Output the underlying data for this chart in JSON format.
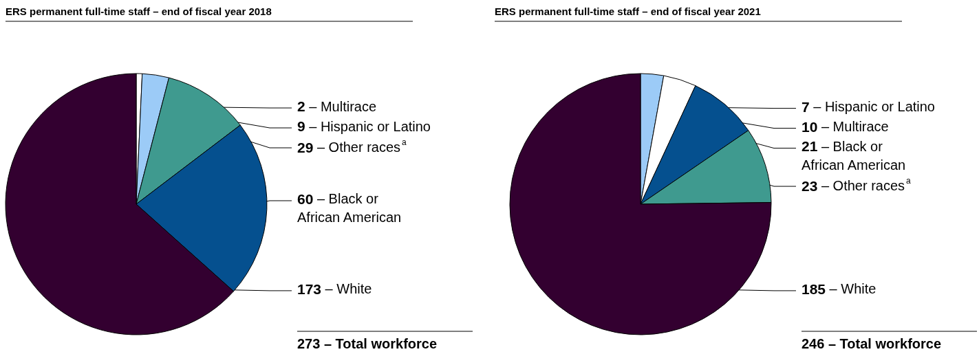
{
  "chart_data": [
    {
      "type": "pie",
      "title": "ERS permanent full-time staff – end of fiscal year 2018",
      "categories": [
        "Multirace",
        "Hispanic or Latino",
        "Other races$^{a}$",
        "Black or\nAfrican American",
        "White"
      ],
      "values": [
        2,
        9,
        29,
        60,
        173
      ],
      "value_labels": [
        "2 –",
        "9 –",
        "29 –",
        "60 –",
        "173 –"
      ],
      "colors": [
        "#ffffff",
        "#9ccbf7",
        "#3f9a8f",
        "#05508f",
        "#330030"
      ],
      "annotations": [
        "273 – Total workforce"
      ]
    },
    {
      "type": "pie",
      "title": "ERS permanent full-time staff – end of fiscal year 2021",
      "categories": [
        "Hispanic or Latino",
        "Multirace",
        "Black or\nAfrican American",
        "Other races$^{a}$",
        "White"
      ],
      "values": [
        7,
        10,
        21,
        23,
        185
      ],
      "value_labels": [
        "7 –",
        "10 –",
        "21 –",
        "23 –",
        "185 –"
      ],
      "colors": [
        "#9ccbf7",
        "#ffffff",
        "#05508f",
        "#3f9a8f",
        "#330030"
      ],
      "annotations": [
        "246 – Total workforce"
      ]
    }
  ]
}
